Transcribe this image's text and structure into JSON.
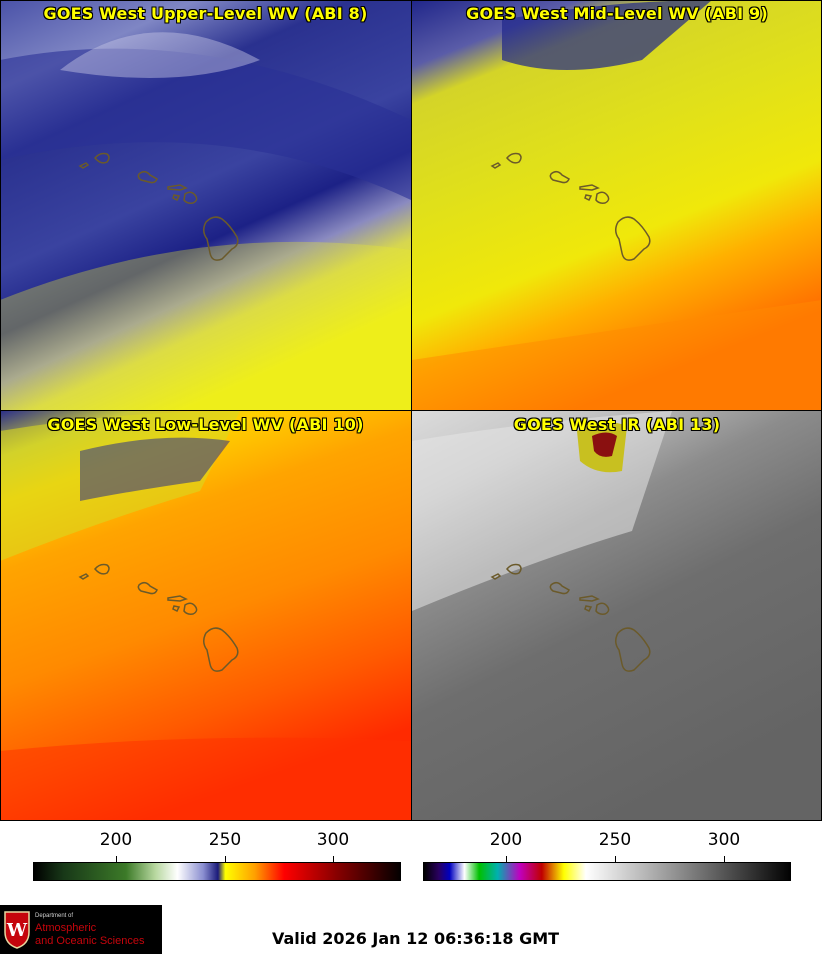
{
  "panels": [
    {
      "title": "GOES West Upper-Level WV (ABI 8)"
    },
    {
      "title": "GOES West Mid-Level WV (ABI 9)"
    },
    {
      "title": "GOES West Low-Level WV (ABI 10)"
    },
    {
      "title": "GOES West IR (ABI 13)"
    }
  ],
  "wv_scale": {
    "ticks": [
      "200",
      "250",
      "300"
    ]
  },
  "ir_scale": {
    "ticks": [
      "200",
      "250",
      "300"
    ]
  },
  "logo": {
    "dept": "Department of",
    "line1": "Atmospheric",
    "line2": "and Oceanic Sciences",
    "crest_letter": "W"
  },
  "valid_time": "Valid 2026 Jan 12 06:36:18 GMT",
  "colors": {
    "title_yellow": "#ffff00",
    "outline_brown": "#6b5a2a",
    "wv_navy": "#1a1f8c",
    "wv_yellow": "#e6e600",
    "wv_orange": "#ff8c00",
    "wv_red": "#ff3000",
    "ir_gray": "#6e6e6e",
    "logo_red": "#c5050c"
  }
}
